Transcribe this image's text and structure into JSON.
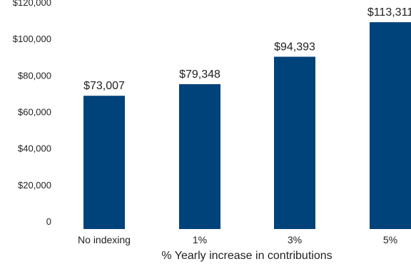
{
  "chart_data": {
    "type": "bar",
    "title": "",
    "xlabel": "% Yearly increase in contributions",
    "ylabel": "",
    "categories": [
      "No indexing",
      "1%",
      "3%",
      "5%"
    ],
    "values": [
      73007,
      79348,
      94393,
      113311
    ],
    "data_labels": [
      "$73,007",
      "$79,348",
      "$94,393",
      "$113,311"
    ],
    "ylim": [
      0,
      120000
    ],
    "y_ticks": [
      0,
      20000,
      40000,
      60000,
      80000,
      100000,
      120000
    ],
    "y_tick_labels": [
      "0",
      "$20,000",
      "$40,000",
      "$60,000",
      "$80,000",
      "$100,000",
      "$120,000"
    ],
    "grid": false,
    "legend": "none",
    "colors": {
      "bar": "#00427a",
      "text": "#222222"
    }
  }
}
